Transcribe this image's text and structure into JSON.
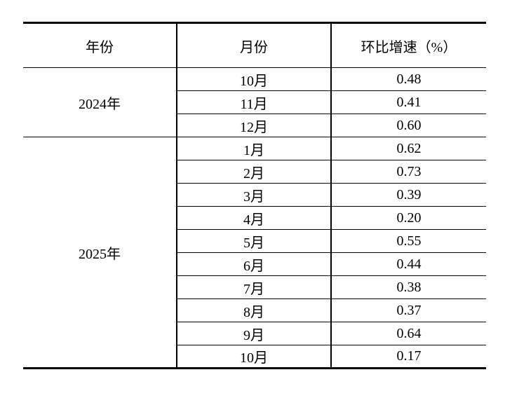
{
  "table": {
    "headers": {
      "year": "年份",
      "month": "月份",
      "growth": "环比增速（%）"
    },
    "groups": [
      {
        "year": "2024年",
        "rows": [
          {
            "month": "10月",
            "value": "0.48"
          },
          {
            "month": "11月",
            "value": "0.41"
          },
          {
            "month": "12月",
            "value": "0.60"
          }
        ]
      },
      {
        "year": "2025年",
        "rows": [
          {
            "month": "1月",
            "value": "0.62"
          },
          {
            "month": "2月",
            "value": "0.73"
          },
          {
            "month": "3月",
            "value": "0.39"
          },
          {
            "month": "4月",
            "value": "0.20"
          },
          {
            "month": "5月",
            "value": "0.55"
          },
          {
            "month": "6月",
            "value": "0.44"
          },
          {
            "month": "7月",
            "value": "0.38"
          },
          {
            "month": "8月",
            "value": "0.37"
          },
          {
            "month": "9月",
            "value": "0.64"
          },
          {
            "month": "10月",
            "value": "0.17"
          }
        ]
      }
    ]
  }
}
